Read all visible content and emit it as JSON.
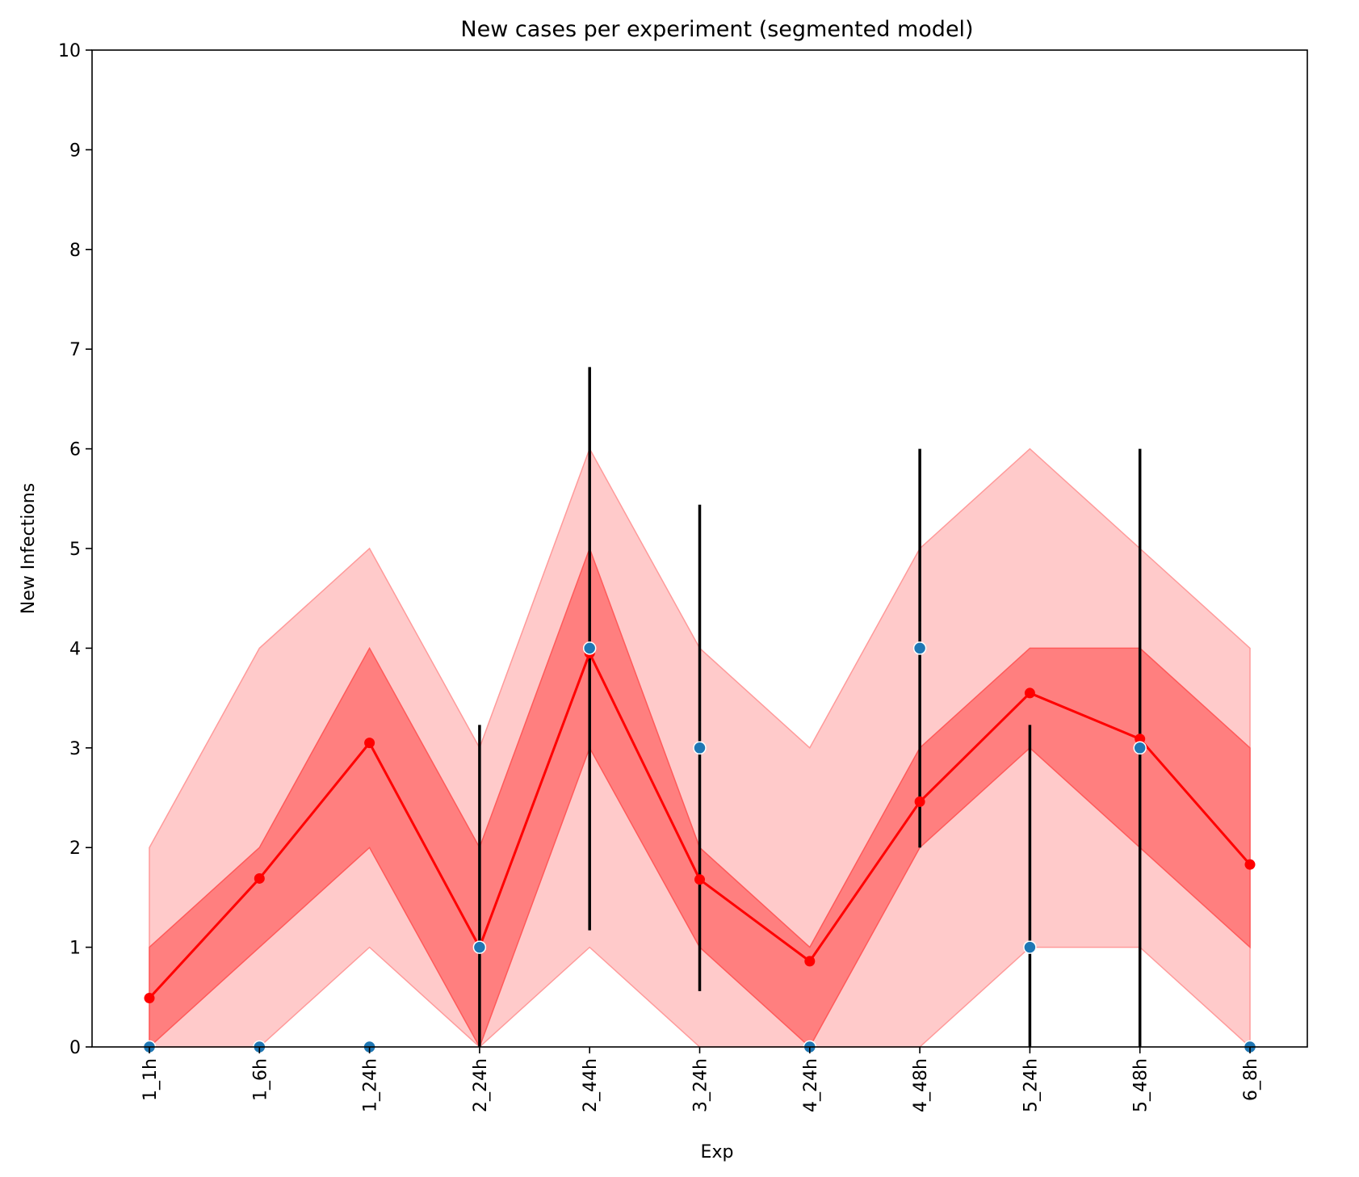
{
  "chart_data": {
    "type": "line",
    "title": "New cases per experiment (segmented model)",
    "xlabel": "Exp",
    "ylabel": "New Infections",
    "ylim": [
      0,
      10
    ],
    "yticks": [
      "0",
      "1",
      "2",
      "3",
      "4",
      "5",
      "6",
      "7",
      "8",
      "9",
      "10"
    ],
    "categories": [
      "1_1h",
      "1_6h",
      "1_24h",
      "2_24h",
      "2_44h",
      "3_24h",
      "4_24h",
      "4_48h",
      "5_24h",
      "5_48h",
      "6_8h"
    ],
    "legend": "none",
    "grid": false,
    "colors": {
      "model_line": "#ff0000",
      "inner_band": "#ff7f7f",
      "outer_band": "#ffcaca",
      "observed": "#1f77b4",
      "errorbar": "#000000"
    },
    "model_mean": [
      0.49,
      1.69,
      3.05,
      1.0,
      3.95,
      1.68,
      0.86,
      2.46,
      3.55,
      3.09,
      1.83
    ],
    "inner_band": {
      "lower": [
        0,
        1,
        2,
        0,
        3,
        1,
        0,
        2,
        3,
        2,
        1
      ],
      "upper": [
        1,
        2,
        4,
        2,
        5,
        2,
        1,
        3,
        4,
        4,
        3
      ]
    },
    "outer_band": {
      "lower": [
        0,
        0,
        1,
        0,
        1,
        0,
        0,
        0,
        1,
        1,
        0
      ],
      "upper": [
        2,
        4,
        5,
        3,
        6,
        4,
        3,
        5,
        6,
        5,
        4
      ]
    },
    "observed": [
      0,
      0,
      0,
      1,
      4,
      3,
      0,
      4,
      1,
      3,
      0
    ],
    "error_bars": [
      {
        "category": "2_24h",
        "low": 0,
        "high": 3.23
      },
      {
        "category": "2_44h",
        "low": 1.17,
        "high": 6.82
      },
      {
        "category": "3_24h",
        "low": 0.56,
        "high": 5.44
      },
      {
        "category": "4_48h",
        "low": 2.0,
        "high": 6.0
      },
      {
        "category": "5_24h",
        "low": 0,
        "high": 3.23
      },
      {
        "category": "5_48h",
        "low": 0,
        "high": 6.0
      }
    ]
  }
}
